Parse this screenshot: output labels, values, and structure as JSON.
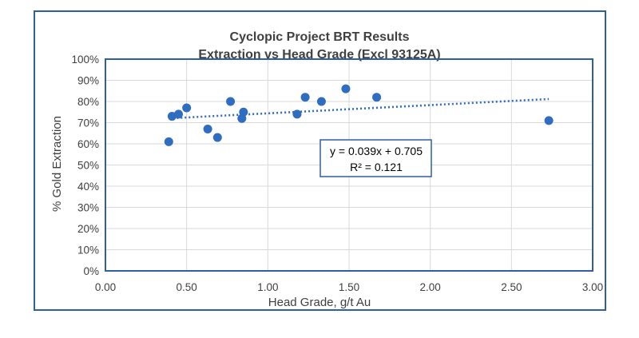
{
  "chart_data": {
    "type": "scatter",
    "title": "Cyclopic Project BRT Results",
    "subtitle": "Extraction vs Head Grade (Excl 93125A)",
    "xlabel": "Head Grade, g/t Au",
    "ylabel": "% Gold Extraction",
    "xlim": [
      0,
      3
    ],
    "ylim": [
      0,
      1
    ],
    "x_ticks": [
      "0.00",
      "0.50",
      "1.00",
      "1.50",
      "2.00",
      "2.50",
      "3.00"
    ],
    "y_ticks": [
      "0%",
      "10%",
      "20%",
      "30%",
      "40%",
      "50%",
      "60%",
      "70%",
      "80%",
      "90%",
      "100%"
    ],
    "grid": true,
    "points": [
      {
        "x": 0.39,
        "y": 0.61
      },
      {
        "x": 0.41,
        "y": 0.73
      },
      {
        "x": 0.45,
        "y": 0.74
      },
      {
        "x": 0.5,
        "y": 0.77
      },
      {
        "x": 0.63,
        "y": 0.67
      },
      {
        "x": 0.69,
        "y": 0.63
      },
      {
        "x": 0.77,
        "y": 0.8
      },
      {
        "x": 0.84,
        "y": 0.72
      },
      {
        "x": 0.85,
        "y": 0.75
      },
      {
        "x": 1.18,
        "y": 0.74
      },
      {
        "x": 1.23,
        "y": 0.82
      },
      {
        "x": 1.33,
        "y": 0.8
      },
      {
        "x": 1.48,
        "y": 0.86
      },
      {
        "x": 1.67,
        "y": 0.82
      },
      {
        "x": 2.73,
        "y": 0.71
      }
    ],
    "trendline": {
      "type": "linear",
      "slope": 0.039,
      "intercept": 0.705,
      "x_range": [
        0.39,
        2.73
      ],
      "equation_text": "y = 0.039x + 0.705",
      "r2_text": "R² = 0.121"
    },
    "colors": {
      "point": "#2e6dbf",
      "trendline": "#2e6dbf",
      "frame": "#2e5f9e",
      "grid": "#d9d9d9"
    }
  }
}
